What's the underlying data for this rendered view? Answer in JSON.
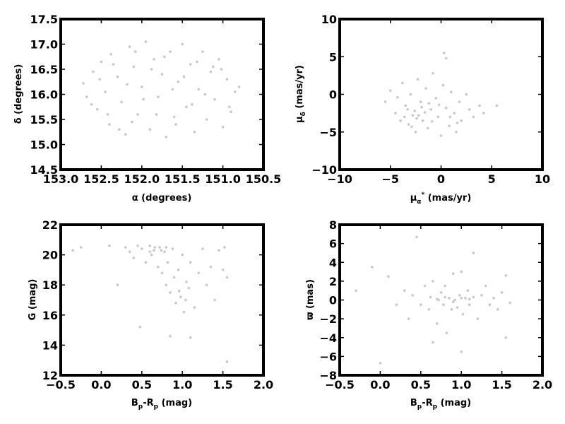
{
  "point_color": "#c8c8c8",
  "frame_color": "#000000",
  "chart_data": [
    {
      "type": "scatter",
      "xlabel": "α (degrees)",
      "ylabel": "δ (degrees)",
      "xlim": [
        153.0,
        150.5
      ],
      "ylim": [
        14.5,
        17.5
      ],
      "xticks": [
        153.0,
        152.5,
        152.0,
        151.5,
        151.0,
        150.5
      ],
      "yticks": [
        14.5,
        15.0,
        15.5,
        16.0,
        16.5,
        17.0,
        17.5
      ],
      "xtick_labels": [
        "153.0",
        "152.5",
        "152.0",
        "151.5",
        "151.0",
        "150.5"
      ],
      "ytick_labels": [
        "14.5",
        "15.0",
        "15.5",
        "16.0",
        "16.5",
        "17.0",
        "17.5"
      ],
      "grid": false,
      "legend": "none",
      "points": [
        [
          152.72,
          16.22
        ],
        [
          152.68,
          15.95
        ],
        [
          152.6,
          16.45
        ],
        [
          152.55,
          15.7
        ],
        [
          152.5,
          16.65
        ],
        [
          152.45,
          16.05
        ],
        [
          152.4,
          15.4
        ],
        [
          152.38,
          16.8
        ],
        [
          152.3,
          16.35
        ],
        [
          152.25,
          15.85
        ],
        [
          152.2,
          15.2
        ],
        [
          152.15,
          16.95
        ],
        [
          152.1,
          16.55
        ],
        [
          152.05,
          15.6
        ],
        [
          152.0,
          16.15
        ],
        [
          151.95,
          17.05
        ],
        [
          151.9,
          15.3
        ],
        [
          151.85,
          16.7
        ],
        [
          151.8,
          15.95
        ],
        [
          151.75,
          16.4
        ],
        [
          151.7,
          15.15
        ],
        [
          151.65,
          16.85
        ],
        [
          151.6,
          15.55
        ],
        [
          151.55,
          16.25
        ],
        [
          151.5,
          17.0
        ],
        [
          151.45,
          15.75
        ],
        [
          151.4,
          16.6
        ],
        [
          151.35,
          15.25
        ],
        [
          151.3,
          16.1
        ],
        [
          151.25,
          16.85
        ],
        [
          151.2,
          15.5
        ],
        [
          151.15,
          16.45
        ],
        [
          151.1,
          15.9
        ],
        [
          151.05,
          16.7
        ],
        [
          151.0,
          15.35
        ],
        [
          150.95,
          16.3
        ],
        [
          150.9,
          15.65
        ],
        [
          150.85,
          16.05
        ],
        [
          150.8,
          16.15
        ],
        [
          152.62,
          15.8
        ],
        [
          152.35,
          16.6
        ],
        [
          152.12,
          15.45
        ],
        [
          151.88,
          16.5
        ],
        [
          151.62,
          16.1
        ],
        [
          151.38,
          15.8
        ],
        [
          151.12,
          16.55
        ],
        [
          150.92,
          15.75
        ],
        [
          152.52,
          16.3
        ],
        [
          152.28,
          15.3
        ],
        [
          151.98,
          15.9
        ],
        [
          151.72,
          16.75
        ],
        [
          151.48,
          16.35
        ],
        [
          151.22,
          16.0
        ],
        [
          152.08,
          16.85
        ],
        [
          151.58,
          15.4
        ],
        [
          151.02,
          16.5
        ],
        [
          152.42,
          15.6
        ],
        [
          151.82,
          15.6
        ],
        [
          151.32,
          16.65
        ],
        [
          152.18,
          16.2
        ]
      ]
    },
    {
      "type": "scatter",
      "xlabel": "μα* (mas/yr)",
      "ylabel": "μδ (mas/yr)",
      "xlim": [
        -10,
        10
      ],
      "ylim": [
        -10,
        10
      ],
      "xticks": [
        -10,
        -5,
        0,
        5,
        10
      ],
      "yticks": [
        -10,
        -5,
        0,
        5,
        10
      ],
      "xtick_labels": [
        "−10",
        "−5",
        "0",
        "5",
        "10"
      ],
      "ytick_labels": [
        "−10",
        "−5",
        "0",
        "5",
        "10"
      ],
      "grid": false,
      "legend": "none",
      "points": [
        [
          -5.5,
          -1.0
        ],
        [
          -5.0,
          0.5
        ],
        [
          -4.5,
          -2.5
        ],
        [
          -4.0,
          -3.5
        ],
        [
          -3.8,
          1.5
        ],
        [
          -3.5,
          -1.5
        ],
        [
          -3.2,
          -4.0
        ],
        [
          -3.0,
          0.0
        ],
        [
          -2.8,
          -2.8
        ],
        [
          -2.5,
          -5.0
        ],
        [
          -2.3,
          2.0
        ],
        [
          -2.0,
          -1.0
        ],
        [
          -1.8,
          -3.5
        ],
        [
          -1.5,
          0.8
        ],
        [
          -1.3,
          -4.5
        ],
        [
          -1.0,
          -2.0
        ],
        [
          -0.8,
          2.8
        ],
        [
          -0.5,
          -0.5
        ],
        [
          -0.3,
          -3.0
        ],
        [
          0.0,
          -5.5
        ],
        [
          0.2,
          1.2
        ],
        [
          0.5,
          -1.8
        ],
        [
          0.8,
          -4.2
        ],
        [
          1.0,
          0.3
        ],
        [
          1.3,
          -2.5
        ],
        [
          1.5,
          -5.0
        ],
        [
          1.8,
          -1.0
        ],
        [
          2.0,
          -3.5
        ],
        [
          2.5,
          0.0
        ],
        [
          2.8,
          -2.0
        ],
        [
          3.2,
          -3.0
        ],
        [
          3.8,
          -1.5
        ],
        [
          4.2,
          -2.5
        ],
        [
          5.5,
          -1.5
        ],
        [
          0.3,
          5.5
        ],
        [
          0.5,
          4.8
        ],
        [
          -2.6,
          -2.2
        ],
        [
          -2.2,
          -2.8
        ],
        [
          -1.9,
          -1.7
        ],
        [
          -2.4,
          -3.2
        ],
        [
          -1.6,
          -2.4
        ],
        [
          -3.3,
          -2.0
        ],
        [
          -0.9,
          -3.6
        ],
        [
          -1.2,
          -1.2
        ],
        [
          -4.3,
          -0.4
        ],
        [
          0.9,
          -3.0
        ],
        [
          -0.2,
          -1.4
        ],
        [
          -2.9,
          -4.3
        ],
        [
          1.6,
          -3.8
        ],
        [
          -3.6,
          -3.0
        ]
      ]
    },
    {
      "type": "scatter",
      "xlabel": "Bp-Rp (mag)",
      "ylabel": "G (mag)",
      "xlim": [
        -0.5,
        2.0
      ],
      "ylim": [
        12,
        22
      ],
      "xticks": [
        -0.5,
        0.0,
        0.5,
        1.0,
        1.5,
        2.0
      ],
      "yticks": [
        12,
        14,
        16,
        18,
        20,
        22
      ],
      "xtick_labels": [
        "−0.5",
        "0.0",
        "0.5",
        "1.0",
        "1.5",
        "2.0"
      ],
      "ytick_labels": [
        "12",
        "14",
        "16",
        "18",
        "20",
        "22"
      ],
      "grid": false,
      "legend": "none",
      "points": [
        [
          -0.35,
          20.3
        ],
        [
          -0.25,
          20.5
        ],
        [
          0.1,
          20.6
        ],
        [
          0.2,
          18.0
        ],
        [
          0.3,
          20.5
        ],
        [
          0.35,
          20.2
        ],
        [
          0.4,
          19.8
        ],
        [
          0.45,
          20.6
        ],
        [
          0.5,
          20.4
        ],
        [
          0.55,
          19.5
        ],
        [
          0.6,
          20.6
        ],
        [
          0.62,
          20.0
        ],
        [
          0.65,
          20.3
        ],
        [
          0.7,
          19.2
        ],
        [
          0.72,
          20.5
        ],
        [
          0.75,
          18.8
        ],
        [
          0.78,
          20.2
        ],
        [
          0.8,
          18.0
        ],
        [
          0.82,
          19.5
        ],
        [
          0.85,
          17.5
        ],
        [
          0.88,
          20.4
        ],
        [
          0.9,
          18.5
        ],
        [
          0.92,
          16.8
        ],
        [
          0.95,
          19.0
        ],
        [
          0.98,
          17.2
        ],
        [
          1.0,
          20.0
        ],
        [
          1.02,
          16.2
        ],
        [
          1.05,
          18.2
        ],
        [
          1.08,
          17.8
        ],
        [
          1.1,
          19.5
        ],
        [
          1.15,
          16.5
        ],
        [
          1.2,
          18.8
        ],
        [
          1.25,
          20.4
        ],
        [
          1.3,
          18.0
        ],
        [
          1.35,
          19.2
        ],
        [
          1.4,
          17.0
        ],
        [
          1.45,
          20.3
        ],
        [
          1.5,
          19.0
        ],
        [
          1.52,
          20.5
        ],
        [
          1.55,
          18.5
        ],
        [
          0.48,
          15.2
        ],
        [
          0.85,
          14.6
        ],
        [
          1.1,
          14.5
        ],
        [
          1.55,
          12.9
        ],
        [
          0.6,
          20.2
        ],
        [
          0.66,
          20.5
        ],
        [
          0.74,
          20.3
        ],
        [
          0.8,
          20.5
        ],
        [
          0.96,
          17.6
        ],
        [
          1.04,
          17.0
        ]
      ]
    },
    {
      "type": "scatter",
      "xlabel": "Bp-Rp (mag)",
      "ylabel": "ϖ (mas)",
      "xlim": [
        -0.5,
        2.0
      ],
      "ylim": [
        -8,
        8
      ],
      "xticks": [
        -0.5,
        0.0,
        0.5,
        1.0,
        1.5,
        2.0
      ],
      "yticks": [
        -8,
        -6,
        -4,
        -2,
        0,
        2,
        4,
        6,
        8
      ],
      "xtick_labels": [
        "−0.5",
        "0.0",
        "0.5",
        "1.0",
        "1.5",
        "2.0"
      ],
      "ytick_labels": [
        "−8",
        "−6",
        "−4",
        "−2",
        "0",
        "2",
        "4",
        "6",
        "8"
      ],
      "grid": false,
      "legend": "none",
      "points": [
        [
          -0.3,
          1.0
        ],
        [
          -0.1,
          3.5
        ],
        [
          0.0,
          -6.7
        ],
        [
          0.1,
          2.5
        ],
        [
          0.2,
          -0.5
        ],
        [
          0.3,
          1.0
        ],
        [
          0.35,
          -2.0
        ],
        [
          0.4,
          0.5
        ],
        [
          0.45,
          6.7
        ],
        [
          0.5,
          -0.5
        ],
        [
          0.55,
          1.5
        ],
        [
          0.6,
          -1.0
        ],
        [
          0.62,
          0.3
        ],
        [
          0.65,
          2.0
        ],
        [
          0.7,
          -2.5
        ],
        [
          0.72,
          0.0
        ],
        [
          0.75,
          0.8
        ],
        [
          0.78,
          -0.5
        ],
        [
          0.8,
          1.5
        ],
        [
          0.82,
          -3.5
        ],
        [
          0.85,
          0.2
        ],
        [
          0.88,
          -1.0
        ],
        [
          0.9,
          2.8
        ],
        [
          0.92,
          0.0
        ],
        [
          0.95,
          -0.8
        ],
        [
          0.98,
          0.5
        ],
        [
          1.0,
          3.0
        ],
        [
          1.02,
          -1.5
        ],
        [
          1.05,
          0.2
        ],
        [
          1.08,
          1.0
        ],
        [
          1.1,
          -0.5
        ],
        [
          1.15,
          0.3
        ],
        [
          1.2,
          -2.0
        ],
        [
          1.25,
          0.5
        ],
        [
          1.3,
          1.5
        ],
        [
          1.35,
          -0.5
        ],
        [
          1.4,
          0.2
        ],
        [
          1.45,
          -1.0
        ],
        [
          1.5,
          0.8
        ],
        [
          1.55,
          2.6
        ],
        [
          1.6,
          -0.3
        ],
        [
          0.65,
          -4.5
        ],
        [
          1.0,
          -5.5
        ],
        [
          1.15,
          5.0
        ],
        [
          1.55,
          -4.0
        ],
        [
          0.7,
          0.1
        ],
        [
          0.8,
          0.3
        ],
        [
          0.9,
          -0.2
        ],
        [
          1.0,
          0.2
        ],
        [
          1.1,
          0.1
        ]
      ]
    }
  ]
}
